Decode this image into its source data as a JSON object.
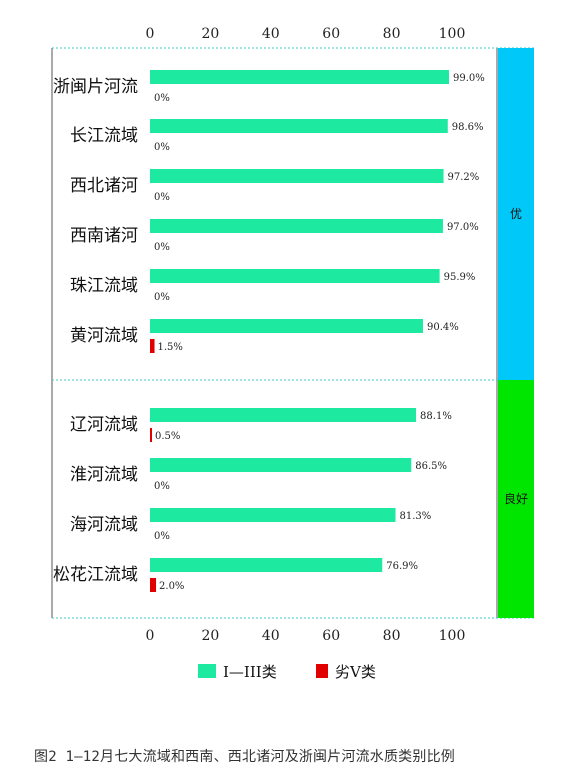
{
  "chart_data": {
    "type": "bar",
    "orientation": "horizontal",
    "categories": [
      "浙闽片河流",
      "长江流域",
      "西北诸河",
      "西南诸河",
      "珠江流域",
      "黄河流域",
      "辽河流域",
      "淮河流域",
      "海河流域",
      "松花江流域"
    ],
    "series": [
      {
        "name": "I—III类",
        "color": "#1de9a0",
        "values": [
          99.0,
          98.6,
          97.2,
          97.0,
          95.9,
          90.4,
          88.1,
          86.5,
          81.3,
          76.9
        ],
        "labels": [
          "99.0%",
          "98.6%",
          "97.2%",
          "97.0%",
          "95.9%",
          "90.4%",
          "88.1%",
          "86.5%",
          "81.3%",
          "76.9%"
        ]
      },
      {
        "name": "劣V类",
        "color": "#e00000",
        "values": [
          0,
          0,
          0,
          0,
          0,
          1.5,
          0.5,
          0,
          0,
          2.0
        ],
        "labels": [
          "0%",
          "0%",
          "0%",
          "0%",
          "0%",
          "1.5%",
          "0.5%",
          "0%",
          "0%",
          "2.0%"
        ]
      }
    ],
    "xlim": [
      0,
      100
    ],
    "xticks": [
      "0",
      "20",
      "40",
      "60",
      "80",
      "100"
    ],
    "groups": [
      {
        "label": "优",
        "color": "#00c8f8",
        "count": 6
      },
      {
        "label": "良好",
        "color": "#00e600",
        "count": 4
      }
    ],
    "legend_position": "bottom",
    "grid": false
  },
  "caption": "图2 1—12月七大流域和西南、西北诸河及浙闽片河流水质类别比例"
}
